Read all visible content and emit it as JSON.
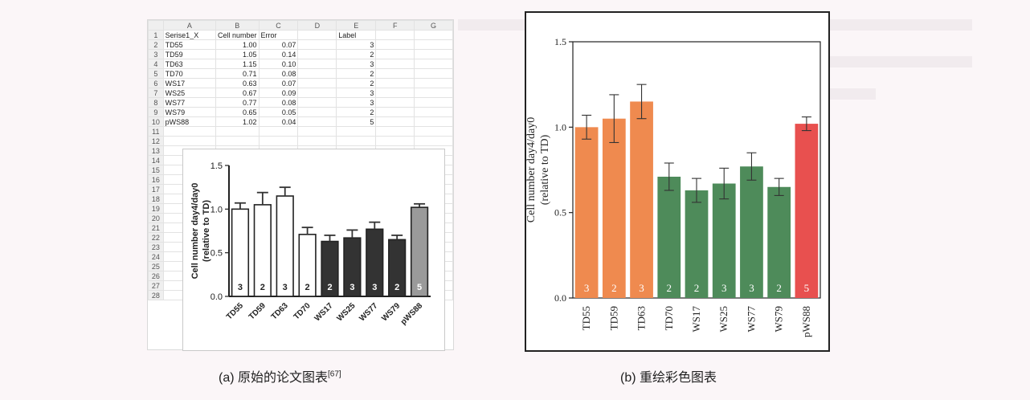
{
  "sheet": {
    "columns": [
      "A",
      "B",
      "C",
      "D",
      "E",
      "F",
      "G"
    ],
    "rows": [
      [
        "Serise1_X",
        "Cell number",
        "Error",
        "",
        "Label"
      ],
      [
        "TD55",
        "1.00",
        "0.07",
        "",
        "3"
      ],
      [
        "TD59",
        "1.05",
        "0.14",
        "",
        "2"
      ],
      [
        "TD63",
        "1.15",
        "0.10",
        "",
        "3"
      ],
      [
        "TD70",
        "0.71",
        "0.08",
        "",
        "2"
      ],
      [
        "WS17",
        "0.63",
        "0.07",
        "",
        "2"
      ],
      [
        "WS25",
        "0.67",
        "0.09",
        "",
        "3"
      ],
      [
        "WS77",
        "0.77",
        "0.08",
        "",
        "3"
      ],
      [
        "WS79",
        "0.65",
        "0.05",
        "",
        "2"
      ],
      [
        "pWS88",
        "1.02",
        "0.04",
        "",
        "5"
      ]
    ],
    "row_count": 28
  },
  "captions": {
    "a": "(a)  原始的论文图表",
    "a_ref": "[67]",
    "b": "(b)  重绘彩色图表"
  },
  "chart_data": [
    {
      "type": "bar",
      "categories": [
        "TD55",
        "TD59",
        "TD63",
        "TD70",
        "WS17",
        "WS25",
        "WS77",
        "WS79",
        "pWS88"
      ],
      "values": [
        1.0,
        1.05,
        1.15,
        0.71,
        0.63,
        0.67,
        0.77,
        0.65,
        1.02
      ],
      "errors": [
        0.07,
        0.14,
        0.1,
        0.08,
        0.07,
        0.09,
        0.08,
        0.05,
        0.04
      ],
      "labels": [
        "3",
        "2",
        "3",
        "2",
        "2",
        "3",
        "3",
        "2",
        "5"
      ],
      "colors": [
        "#ffffff",
        "#ffffff",
        "#ffffff",
        "#ffffff",
        "#333333",
        "#333333",
        "#333333",
        "#333333",
        "#9a9a9a"
      ],
      "ylabel": "Cell number day4/day0\n(relative to TD)",
      "ylim": [
        0,
        1.5
      ],
      "yticks": [
        "0.0",
        "0.5",
        "1.0",
        "1.5"
      ],
      "title": ""
    },
    {
      "type": "bar",
      "categories": [
        "TD55",
        "TD59",
        "TD63",
        "TD70",
        "WS17",
        "WS25",
        "WS77",
        "WS79",
        "pWS88"
      ],
      "values": [
        1.0,
        1.05,
        1.15,
        0.71,
        0.63,
        0.67,
        0.77,
        0.65,
        1.02
      ],
      "errors": [
        0.07,
        0.14,
        0.1,
        0.08,
        0.07,
        0.09,
        0.08,
        0.05,
        0.04
      ],
      "labels": [
        "3",
        "2",
        "3",
        "2",
        "2",
        "3",
        "3",
        "2",
        "5"
      ],
      "colors": [
        "#ef8a4f",
        "#ef8a4f",
        "#ef8a4f",
        "#4e8b5a",
        "#4e8b5a",
        "#4e8b5a",
        "#4e8b5a",
        "#4e8b5a",
        "#e8504f"
      ],
      "ylabel": "Cell number day4/day0\n(relative to TD)",
      "ylim": [
        0,
        1.5
      ],
      "yticks": [
        "0.0",
        "0.5",
        "1.0",
        "1.5"
      ],
      "title": ""
    }
  ]
}
